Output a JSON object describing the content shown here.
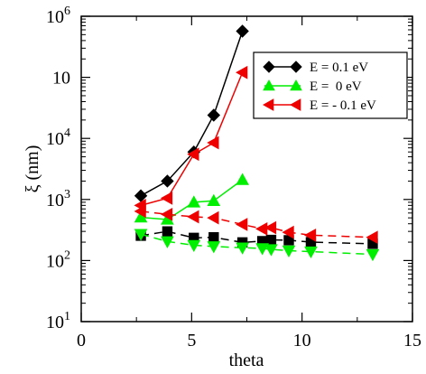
{
  "chart_data": {
    "type": "line",
    "xlabel": "theta",
    "ylabel": "ξ (nm)",
    "x_scale": "linear",
    "y_scale": "log",
    "xlim": [
      0,
      15
    ],
    "ylim": [
      10,
      1000000
    ],
    "x_ticks": [
      0,
      5,
      10,
      15
    ],
    "y_ticks": [
      {
        "value": 10,
        "base": "10",
        "exp": "1"
      },
      {
        "value": 100,
        "base": "10",
        "exp": "2"
      },
      {
        "value": 1000,
        "base": "10",
        "exp": "3"
      },
      {
        "value": 10000,
        "base": "10",
        "exp": "4"
      },
      {
        "value": 100000,
        "base": "10",
        "exp": ""
      },
      {
        "value": 1000000,
        "base": "10",
        "exp": "6"
      }
    ],
    "grid": false,
    "legend_position": "top-right",
    "series": [
      {
        "name": "E = 0.1 eV",
        "color": "#000000",
        "marker": "diamond",
        "line": "solid",
        "x": [
          2.7,
          3.9,
          5.1,
          6.0,
          7.3
        ],
        "y": [
          1150,
          2000,
          6000,
          24000,
          570000
        ]
      },
      {
        "name": "E =  0 eV",
        "color": "#00ee00",
        "marker": "triangle-up",
        "line": "solid",
        "x": [
          2.7,
          3.9,
          5.1,
          6.0,
          7.3
        ],
        "y": [
          510,
          470,
          900,
          950,
          2100
        ]
      },
      {
        "name": "E = - 0.1 eV",
        "color": "#ee0000",
        "marker": "triangle-left",
        "line": "solid",
        "x": [
          2.7,
          3.9,
          5.1,
          6.0,
          7.3
        ],
        "y": [
          800,
          1050,
          5500,
          8500,
          120000
        ]
      },
      {
        "name": "",
        "color": "#000000",
        "marker": "square",
        "line": "dashed",
        "x": [
          2.7,
          3.9,
          5.1,
          6.0,
          7.3,
          8.2,
          8.6,
          9.4,
          10.4,
          13.2
        ],
        "y": [
          255,
          300,
          235,
          240,
          198,
          208,
          218,
          215,
          200,
          188
        ]
      },
      {
        "name": "",
        "color": "#00ee00",
        "marker": "triangle-down",
        "line": "dashed",
        "x": [
          2.7,
          3.9,
          5.1,
          6.0,
          7.3,
          8.2,
          8.6,
          9.4,
          10.4,
          13.2
        ],
        "y": [
          270,
          205,
          178,
          170,
          162,
          158,
          152,
          145,
          140,
          126
        ]
      },
      {
        "name": "",
        "color": "#ee0000",
        "marker": "triangle-left",
        "line": "dashed",
        "x": [
          2.7,
          3.9,
          5.1,
          6.0,
          7.3,
          8.2,
          8.6,
          9.4,
          10.4,
          13.2
        ],
        "y": [
          640,
          570,
          520,
          500,
          390,
          330,
          345,
          290,
          260,
          240
        ]
      }
    ]
  }
}
